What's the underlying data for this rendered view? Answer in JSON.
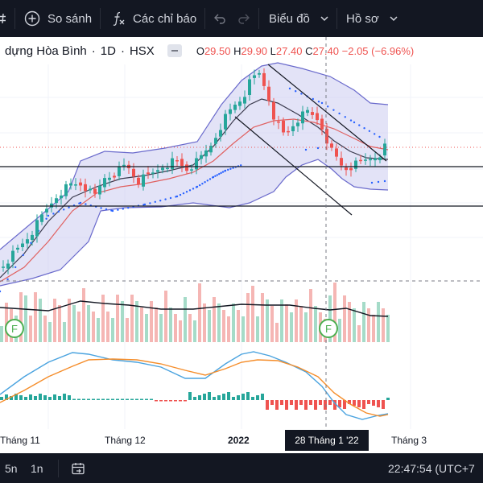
{
  "toolbar": {
    "compare_label": "So sánh",
    "indicators_label": "Các chỉ báo",
    "chart_type_label": "Biểu đồ",
    "profile_label": "Hồ sơ",
    "icons": [
      "hash-icon",
      "add-circle-icon",
      "function-icon",
      "undo-icon",
      "redo-icon",
      "chevron-down-icon"
    ]
  },
  "legend": {
    "symbol_name": "dựng Hòa Bình",
    "interval": "1D",
    "exchange": "HSX",
    "open_label": "O",
    "open": "29.50",
    "high_label": "H",
    "high": "29.90",
    "low_label": "L",
    "low": "27.40",
    "close_label": "C",
    "close": "27.40",
    "change": "−2.05 (−6.96%)",
    "down_color": "#ef5350",
    "up_color": "#26a69a"
  },
  "volume_pane": {
    "event_markers": [
      "F",
      "F"
    ],
    "marker_color": "#4caf50"
  },
  "time_axis": {
    "labels": [
      "Tháng 11",
      "Tháng 12",
      "2022",
      "Tháng 3"
    ],
    "crosshair_label": "28 Tháng 1 '22"
  },
  "bottom_bar": {
    "range_5m": "5n",
    "range_1m": "1n",
    "clock": "22:47:54 (UTC+7"
  },
  "chart_data": {
    "type": "candlestick",
    "symbol": "dựng Hòa Bình",
    "interval": "1D",
    "exchange": "HSX",
    "x_axis_labels": [
      "Tháng 11",
      "Tháng 12",
      "2022",
      "Tháng 3"
    ],
    "last_bar": {
      "open": 29.5,
      "high": 29.9,
      "low": 27.4,
      "close": 27.4,
      "change": -2.05,
      "change_pct": -6.96
    },
    "indicators": [
      "Bollinger Bands",
      "Moving averages",
      "Volume",
      "Volume MA",
      "MACD"
    ],
    "colors": {
      "up": "#26a69a",
      "down": "#ef5350",
      "bb_fill": "#ccccf0",
      "bb_line": "#6a6acc",
      "ma_fast": "#3b3b4e",
      "ma_slow": "#e06060",
      "macd": "#4aa3df",
      "signal": "#f58d2a"
    }
  }
}
